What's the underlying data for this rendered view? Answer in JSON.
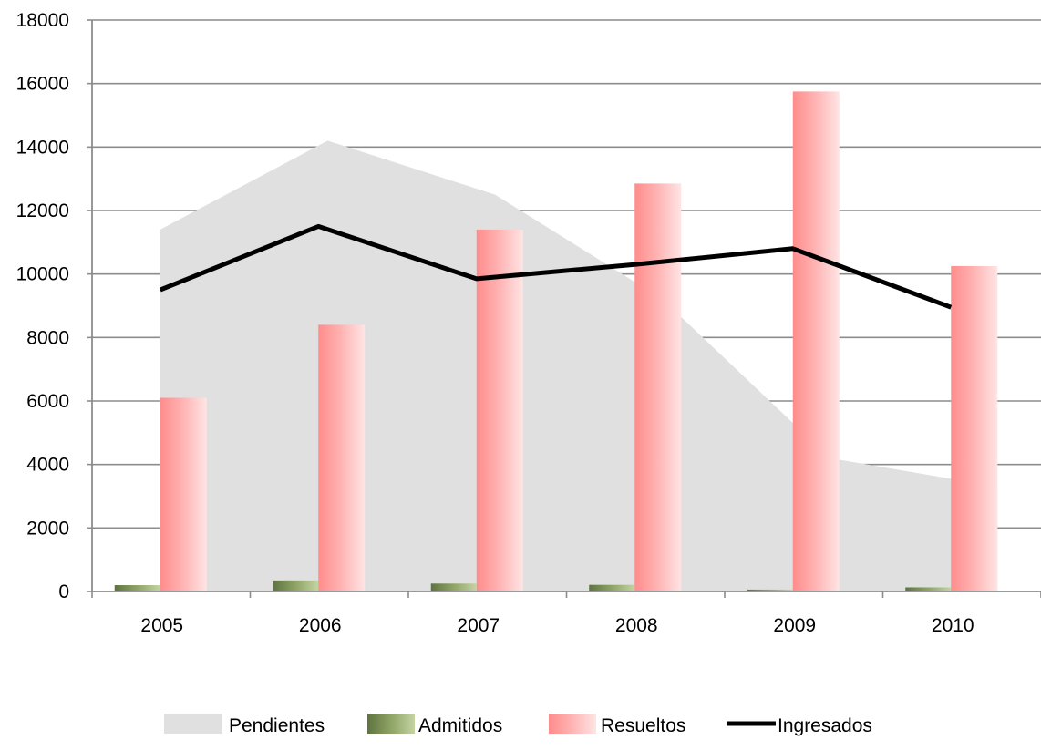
{
  "chart_data": {
    "type": "bar",
    "categories": [
      "2005",
      "2006",
      "2007",
      "2008",
      "2009",
      "2010"
    ],
    "ylim": [
      0,
      18000
    ],
    "yticks": [
      0,
      2000,
      4000,
      6000,
      8000,
      10000,
      12000,
      14000,
      16000,
      18000
    ],
    "grid": true,
    "legend_position": "bottom",
    "series": [
      {
        "name": "Pendientes",
        "type": "area",
        "color": "#e0e0e0",
        "values": [
          11400,
          14200,
          12500,
          9200,
          4200,
          3300
        ]
      },
      {
        "name": "Admitidos",
        "type": "bar",
        "color": "#8a9e60",
        "values": [
          200,
          320,
          250,
          210,
          60,
          130
        ]
      },
      {
        "name": "Resueltos",
        "type": "bar",
        "color": "#ff8f8f",
        "values": [
          6100,
          8400,
          11400,
          12850,
          15750,
          10250
        ]
      },
      {
        "name": "Ingresados",
        "type": "line",
        "color": "#000000",
        "values": [
          9500,
          11500,
          9850,
          10300,
          10800,
          8950
        ]
      }
    ]
  }
}
